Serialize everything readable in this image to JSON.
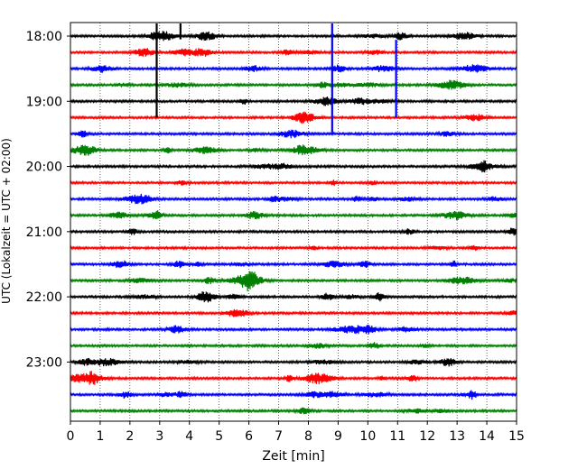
{
  "chart_data": {
    "type": "line",
    "title": "",
    "xlabel": "Zeit  [min]",
    "ylabel": "UTC (Lokalzeit = UTC + 02:00)",
    "xlim": [
      0,
      15
    ],
    "x_ticks": [
      0,
      1,
      2,
      3,
      4,
      5,
      6,
      7,
      8,
      9,
      10,
      11,
      12,
      13,
      14,
      15
    ],
    "x_tick_labels": [
      "0",
      "1",
      "2",
      "3",
      "4",
      "5",
      "6",
      "7",
      "8",
      "9",
      "10",
      "11",
      "12",
      "13",
      "14",
      "15"
    ],
    "y_tick_labels": [
      "18:00",
      "19:00",
      "20:00",
      "21:00",
      "22:00",
      "23:00"
    ],
    "grid": "vertical dotted lines at each minute",
    "row_interval_minutes": 15,
    "row_colors": [
      "#000000",
      "#ff0000",
      "#0000ff",
      "#008000"
    ],
    "rows": [
      {
        "start": "18:00",
        "color": "#000000"
      },
      {
        "start": "18:15",
        "color": "#ff0000"
      },
      {
        "start": "18:30",
        "color": "#0000ff"
      },
      {
        "start": "18:45",
        "color": "#008000"
      },
      {
        "start": "19:00",
        "color": "#000000"
      },
      {
        "start": "19:15",
        "color": "#ff0000"
      },
      {
        "start": "19:30",
        "color": "#0000ff"
      },
      {
        "start": "19:45",
        "color": "#008000"
      },
      {
        "start": "20:00",
        "color": "#000000"
      },
      {
        "start": "20:15",
        "color": "#ff0000"
      },
      {
        "start": "20:30",
        "color": "#0000ff"
      },
      {
        "start": "20:45",
        "color": "#008000"
      },
      {
        "start": "21:00",
        "color": "#000000"
      },
      {
        "start": "21:15",
        "color": "#ff0000"
      },
      {
        "start": "21:30",
        "color": "#0000ff"
      },
      {
        "start": "21:45",
        "color": "#008000"
      },
      {
        "start": "22:00",
        "color": "#000000"
      },
      {
        "start": "22:15",
        "color": "#ff0000"
      },
      {
        "start": "22:30",
        "color": "#0000ff"
      },
      {
        "start": "22:45",
        "color": "#008000"
      },
      {
        "start": "23:00",
        "color": "#000000"
      },
      {
        "start": "23:15",
        "color": "#ff0000"
      },
      {
        "start": "23:30",
        "color": "#0000ff"
      },
      {
        "start": "23:45",
        "color": "#008000"
      }
    ],
    "spikes": [
      {
        "row": 0,
        "x": 2.9,
        "span_rows": 5,
        "color": "#000000"
      },
      {
        "row": 0,
        "x": 3.7,
        "span_rows": 0.2,
        "color": "#000000"
      },
      {
        "row": 0,
        "x": 8.8,
        "span_rows": 6,
        "color": "#0000ff"
      },
      {
        "row": 1,
        "x": 10.95,
        "span_rows": 4,
        "color": "#0000ff"
      }
    ]
  }
}
